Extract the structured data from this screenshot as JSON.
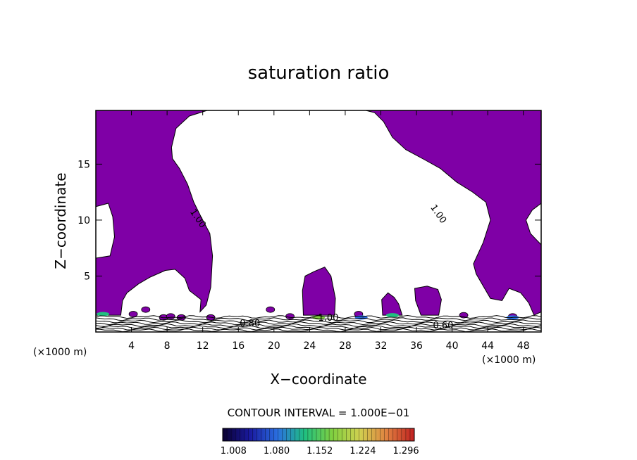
{
  "chart_data": {
    "type": "contour",
    "title": "saturation ratio",
    "xlabel": "X−coordinate",
    "ylabel": "Z−coordinate",
    "x_unit": "(×1000 m)",
    "x_ticks": [
      "4",
      "8",
      "12",
      "16",
      "20",
      "24",
      "28",
      "32",
      "36",
      "40",
      "44",
      "48"
    ],
    "x_tick_values": [
      4,
      8,
      12,
      16,
      20,
      24,
      28,
      32,
      36,
      40,
      44,
      48
    ],
    "y_ticks": [
      "5",
      "10",
      "15"
    ],
    "y_tick_values": [
      5,
      10,
      15
    ],
    "xlim": [
      0,
      50
    ],
    "ylim": [
      0,
      19.8
    ],
    "fill_threshold": 1.0,
    "fill_color": "#7f00a6",
    "contour_labels": [
      {
        "text": "1.00",
        "x": 11.2,
        "y": 10.0
      },
      {
        "text": "1.00",
        "x": 38.2,
        "y": 10.4
      },
      {
        "text": "0.80",
        "x": 17.3,
        "y": 0.5
      },
      {
        "text": "1.00",
        "x": 26.1,
        "y": 1.0
      },
      {
        "text": "0.60",
        "x": 39.0,
        "y": 0.3
      }
    ],
    "contour_interval": "CONTOUR INTERVAL = 1.000E−01",
    "colorbar": {
      "labels": [
        "1.008",
        "1.080",
        "1.152",
        "1.224",
        "1.296"
      ],
      "values": [
        1.008,
        1.08,
        1.152,
        1.224,
        1.296
      ],
      "range": [
        0.99,
        1.31
      ],
      "colors": [
        "#0a0030",
        "#1a1aa0",
        "#2a6fe0",
        "#20c080",
        "#80d040",
        "#d0d050",
        "#e08040",
        "#c02020"
      ]
    }
  }
}
